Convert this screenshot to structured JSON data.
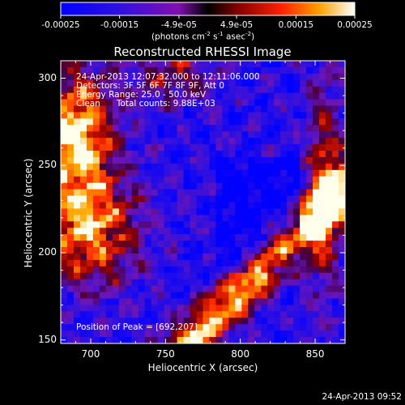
{
  "chart_data": {
    "type": "heatmap",
    "title": "Reconstructed RHESSI Image",
    "xlabel": "Heliocentric X (arcsec)",
    "ylabel": "Heliocentric Y (arcsec)",
    "xlim": [
      680,
      870
    ],
    "ylim": [
      148,
      310
    ],
    "x_ticks": [
      700,
      750,
      800,
      850
    ],
    "y_ticks": [
      150,
      200,
      250,
      300
    ],
    "colorbar": {
      "min": -0.00025,
      "max": 0.00025,
      "tick_values": [
        -0.00025,
        -0.00015,
        -4.9e-05,
        4.9e-05,
        0.00015,
        0.00025
      ],
      "tick_labels": [
        "-0.00025",
        "-0.00015",
        "-4.9e-05",
        "4.9e-05",
        "0.00015",
        "0.00025"
      ],
      "unit_label": "(photons cm",
      "unit_sup1": "-2",
      "unit_mid": " s",
      "unit_sup2": "-1",
      "unit_mid2": " asec",
      "unit_sup3": "-2",
      "unit_end": ")"
    },
    "annotations": {
      "time_range": "24-Apr-2013 12:07:32.000 to 12:11:06.000",
      "detectors": "Detectors: 3F 5F 6F 7F 8F 9F, Att 0",
      "energy": "Energy Range: 25.0 - 50.0 keV",
      "clean": "Clean      Total counts: 9.88E+03",
      "peak": "Position of Peak = [692,207]"
    },
    "footer_timestamp": "24-Apr-2013 09:52"
  }
}
